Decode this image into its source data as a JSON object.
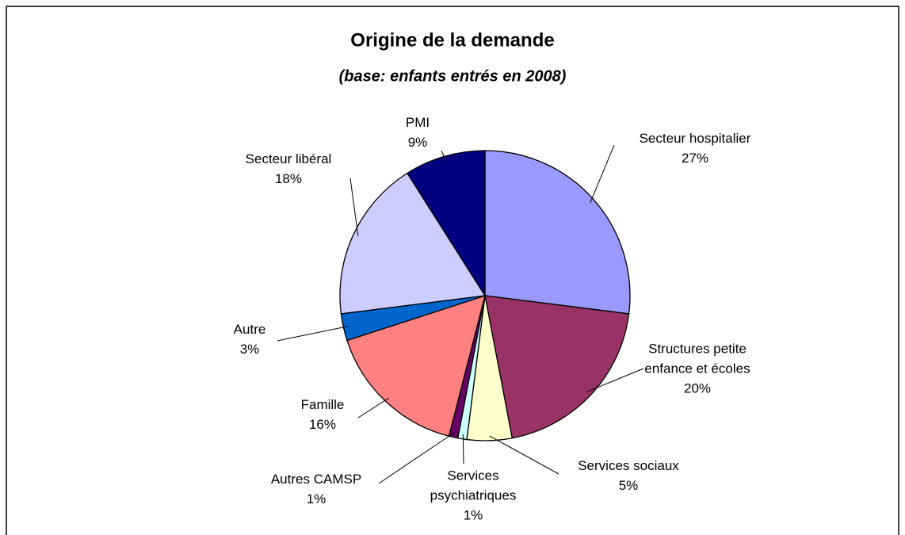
{
  "chart_data": {
    "type": "pie",
    "title": "Origine de la demande",
    "subtitle": "(base: enfants entrés en 2008)",
    "categories": [
      "Secteur hospitalier",
      "Structures petite enfance et écoles",
      "Services sociaux",
      "Services psychiatriques",
      "Autres CAMSP",
      "Famille",
      "Autre",
      "Secteur libéral",
      "PMI"
    ],
    "values": [
      27,
      20,
      5,
      1,
      1,
      16,
      3,
      18,
      9
    ],
    "value_labels": [
      "27%",
      "20%",
      "5%",
      "1%",
      "1%",
      "16%",
      "3%",
      "18%",
      "9%"
    ],
    "colors": [
      "#9999ff",
      "#993366",
      "#ffffcc",
      "#ccffff",
      "#660066",
      "#ff8080",
      "#0066cc",
      "#ccccff",
      "#000080"
    ]
  }
}
